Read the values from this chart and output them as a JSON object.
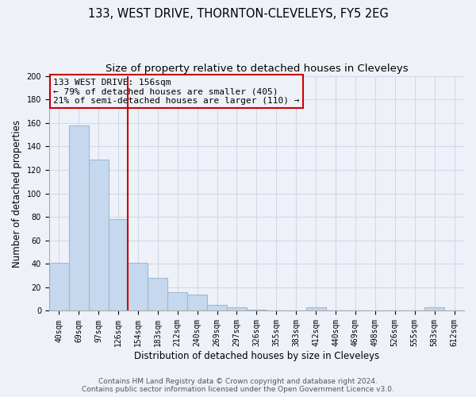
{
  "title": "133, WEST DRIVE, THORNTON-CLEVELEYS, FY5 2EG",
  "subtitle": "Size of property relative to detached houses in Cleveleys",
  "xlabel": "Distribution of detached houses by size in Cleveleys",
  "ylabel": "Number of detached properties",
  "bar_labels": [
    "40sqm",
    "69sqm",
    "97sqm",
    "126sqm",
    "154sqm",
    "183sqm",
    "212sqm",
    "240sqm",
    "269sqm",
    "297sqm",
    "326sqm",
    "355sqm",
    "383sqm",
    "412sqm",
    "440sqm",
    "469sqm",
    "498sqm",
    "526sqm",
    "555sqm",
    "583sqm",
    "612sqm"
  ],
  "bar_values": [
    41,
    158,
    129,
    78,
    41,
    28,
    16,
    14,
    5,
    3,
    1,
    0,
    0,
    3,
    0,
    0,
    0,
    0,
    0,
    3,
    0
  ],
  "bar_color": "#c5d8ed",
  "bar_edgecolor": "#a0b8d8",
  "vline_index": 3.5,
  "vline_color": "#cc0000",
  "annotation_title": "133 WEST DRIVE: 156sqm",
  "annotation_line1": "← 79% of detached houses are smaller (405)",
  "annotation_line2": "21% of semi-detached houses are larger (110) →",
  "annotation_box_color": "#cc0000",
  "ylim": [
    0,
    200
  ],
  "yticks": [
    0,
    20,
    40,
    60,
    80,
    100,
    120,
    140,
    160,
    180,
    200
  ],
  "grid_color": "#d0d8e8",
  "background_color": "#eef2f8",
  "footer_line1": "Contains HM Land Registry data © Crown copyright and database right 2024.",
  "footer_line2": "Contains public sector information licensed under the Open Government Licence v3.0.",
  "title_fontsize": 10.5,
  "subtitle_fontsize": 9.5,
  "axis_label_fontsize": 8.5,
  "tick_fontsize": 7,
  "footer_fontsize": 6.5,
  "annotation_fontsize": 8
}
